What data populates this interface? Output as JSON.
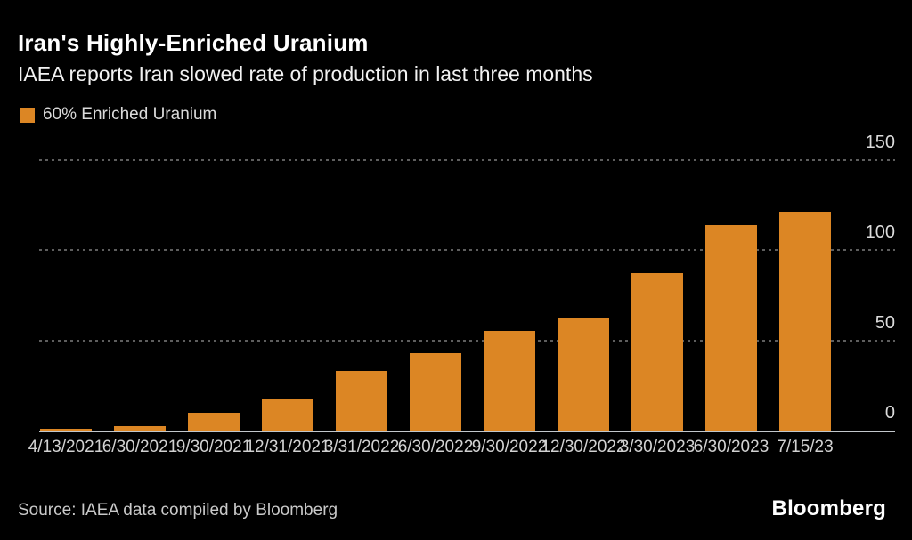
{
  "header": {
    "title": "Iran's Highly-Enriched Uranium",
    "subtitle": "IAEA reports Iran slowed rate of production in last three months"
  },
  "legend": {
    "label": "60% Enriched Uranium",
    "swatch_color": "#DC8624"
  },
  "chart_data": {
    "type": "bar",
    "title": "Iran's Highly-Enriched Uranium",
    "subtitle": "IAEA reports Iran slowed rate of production in last three months",
    "series_name": "60% Enriched Uranium",
    "categories": [
      "4/13/2021",
      "6/30/2021",
      "9/30/2021",
      "12/31/2021",
      "3/31/2022",
      "6/30/2022",
      "9/30/2022",
      "12/30/2022",
      "3/30/2023",
      "6/30/2023",
      "7/15/23"
    ],
    "values": [
      1.0,
      2.4,
      10.0,
      17.7,
      33.2,
      43.1,
      55.3,
      62.3,
      87.5,
      114.1,
      121.6
    ],
    "xlabel": "",
    "ylabel": "",
    "ylim": [
      0,
      150
    ],
    "yticks": [
      0,
      50,
      100,
      150
    ],
    "grid": "horizontal-dotted",
    "legend_position": "top-left",
    "bar_color": "#DC8624",
    "background_color": "#000000"
  },
  "footer": {
    "source": "Source: IAEA data compiled by Bloomberg",
    "brand": "Bloomberg"
  }
}
